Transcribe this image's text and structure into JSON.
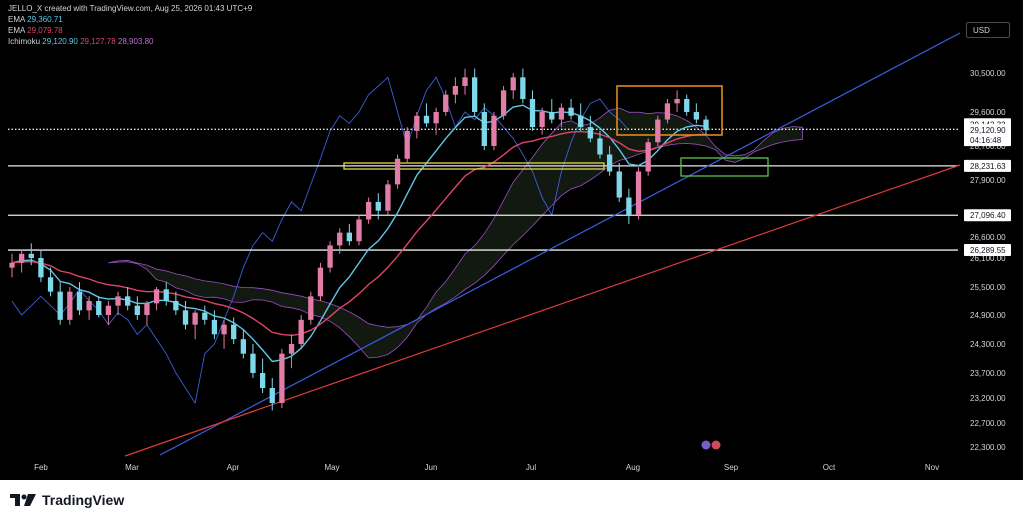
{
  "header": {
    "attribution": "JELLO_X created with TradingView.com, Aug 25, 2026 01:43 UTC+9",
    "ema1_label": "EMA",
    "ema1_value": "29,360.71",
    "ema2_label": "EMA",
    "ema2_value": "29,079.78",
    "ichimoku_label": "Ichimoku",
    "ichimoku_v1": "29,120.90",
    "ichimoku_v2": "29,127.78",
    "ichimoku_v3": "28,903.80"
  },
  "currency": "USD",
  "footer": {
    "brand": "TradingView"
  },
  "chart_data": {
    "type": "candlestick",
    "y_axis_ticks": [
      "30,500.00",
      "29,600.00",
      "28,700.00",
      "27,900.00",
      "26,600.00",
      "26,100.00",
      "25,500.00",
      "24,900.00",
      "24,300.00",
      "23,700.00",
      "23,200.00",
      "22,700.00",
      "22,300.00"
    ],
    "y_axis_tick_values": [
      30500,
      29600,
      28700,
      27900,
      26600,
      26100,
      25500,
      24900,
      24300,
      23700,
      23200,
      22700,
      22300
    ],
    "x_axis_ticks": [
      "Feb",
      "Mar",
      "Apr",
      "May",
      "Jun",
      "Jul",
      "Aug",
      "Sep",
      "Oct",
      "Nov"
    ],
    "horizontal_levels": [
      {
        "label": "29,142.33",
        "value": 29142.33,
        "style": "dotted"
      },
      {
        "label": "28,231.63",
        "value": 28231.63,
        "style": "solid"
      },
      {
        "label": "27,096.40",
        "value": 27096.4,
        "style": "solid"
      },
      {
        "label": "26,289.55",
        "value": 26289.55,
        "style": "solid"
      }
    ],
    "price_tag": {
      "price": "29,120.90",
      "countdown": "04:16:48",
      "value": 29120.9
    },
    "series_colors": {
      "up": "#e27da7",
      "down": "#7fd8ea",
      "ema_fast": "#5fc6e8",
      "ema_slow": "#e04468",
      "ichimoku_span": "#9c4fc0",
      "ichimoku_base": "#3b5fd6",
      "trend_blue": "#3a5fe0",
      "trend_red": "#e03a3a"
    },
    "candles": [
      [
        25900,
        26200,
        25700,
        26000
      ],
      [
        26000,
        26300,
        25800,
        26200
      ],
      [
        26200,
        26450,
        25950,
        26100
      ],
      [
        26100,
        26300,
        25600,
        25700
      ],
      [
        25700,
        25900,
        25300,
        25400
      ],
      [
        25400,
        25600,
        24700,
        24800
      ],
      [
        24800,
        25500,
        24700,
        25400
      ],
      [
        25400,
        25600,
        24900,
        25000
      ],
      [
        25000,
        25300,
        24800,
        25200
      ],
      [
        25200,
        25300,
        24850,
        24900
      ],
      [
        24900,
        25200,
        24700,
        25100
      ],
      [
        25100,
        25400,
        24900,
        25300
      ],
      [
        25300,
        25500,
        25000,
        25100
      ],
      [
        25100,
        25300,
        24800,
        24900
      ],
      [
        24900,
        25200,
        24700,
        25150
      ],
      [
        25150,
        25500,
        25000,
        25450
      ],
      [
        25450,
        25600,
        25100,
        25200
      ],
      [
        25200,
        25400,
        24900,
        25000
      ],
      [
        25000,
        25200,
        24600,
        24700
      ],
      [
        24700,
        25000,
        24400,
        24950
      ],
      [
        24950,
        25100,
        24700,
        24800
      ],
      [
        24800,
        25000,
        24400,
        24500
      ],
      [
        24500,
        24800,
        24200,
        24700
      ],
      [
        24700,
        24850,
        24300,
        24400
      ],
      [
        24400,
        24600,
        24000,
        24100
      ],
      [
        24100,
        24300,
        23600,
        23700
      ],
      [
        23700,
        24000,
        23300,
        23400
      ],
      [
        23400,
        23600,
        22950,
        23100
      ],
      [
        23100,
        24200,
        23000,
        24100
      ],
      [
        24100,
        24500,
        23800,
        24300
      ],
      [
        24300,
        24900,
        24200,
        24800
      ],
      [
        24800,
        25400,
        24700,
        25300
      ],
      [
        25300,
        26000,
        25200,
        25900
      ],
      [
        25900,
        26500,
        25800,
        26400
      ],
      [
        26400,
        26800,
        26200,
        26700
      ],
      [
        26700,
        26900,
        26400,
        26500
      ],
      [
        26500,
        27100,
        26400,
        27000
      ],
      [
        27000,
        27500,
        26900,
        27400
      ],
      [
        27400,
        27600,
        27000,
        27200
      ],
      [
        27200,
        27900,
        27100,
        27800
      ],
      [
        27800,
        28500,
        27700,
        28400
      ],
      [
        28400,
        29200,
        28300,
        29100
      ],
      [
        29100,
        29600,
        28900,
        29500
      ],
      [
        29500,
        29800,
        29200,
        29300
      ],
      [
        29300,
        29700,
        29000,
        29600
      ],
      [
        29600,
        30100,
        29500,
        30000
      ],
      [
        30000,
        30400,
        29800,
        30200
      ],
      [
        30200,
        30600,
        30000,
        30400
      ],
      [
        30400,
        30600,
        29500,
        29600
      ],
      [
        29600,
        29800,
        28600,
        28700
      ],
      [
        28700,
        29600,
        28600,
        29500
      ],
      [
        29500,
        30200,
        29400,
        30100
      ],
      [
        30100,
        30500,
        29900,
        30400
      ],
      [
        30400,
        30600,
        29800,
        29900
      ],
      [
        29900,
        30100,
        29100,
        29200
      ],
      [
        29200,
        29700,
        29000,
        29600
      ],
      [
        29600,
        29900,
        29300,
        29400
      ],
      [
        29400,
        29800,
        29200,
        29700
      ],
      [
        29700,
        29900,
        29400,
        29500
      ],
      [
        29500,
        29800,
        29100,
        29200
      ],
      [
        29200,
        29500,
        28800,
        28900
      ],
      [
        28900,
        29100,
        28400,
        28500
      ],
      [
        28500,
        28700,
        28000,
        28100
      ],
      [
        28100,
        28300,
        27400,
        27500
      ],
      [
        27500,
        27700,
        26900,
        27100
      ],
      [
        27100,
        28200,
        27000,
        28100
      ],
      [
        28100,
        28900,
        28000,
        28800
      ],
      [
        28800,
        29500,
        28700,
        29400
      ],
      [
        29400,
        29900,
        29300,
        29800
      ],
      [
        29800,
        30100,
        29600,
        29900
      ],
      [
        29900,
        30000,
        29500,
        29600
      ],
      [
        29600,
        29800,
        29300,
        29400
      ],
      [
        29400,
        29500,
        29000,
        29120
      ]
    ]
  }
}
